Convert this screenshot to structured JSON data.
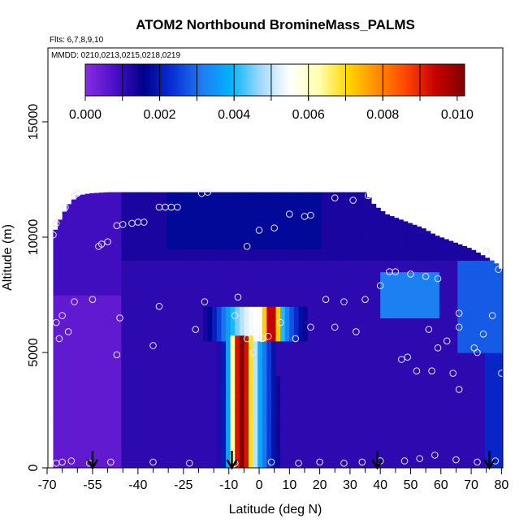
{
  "chart_data": {
    "type": "heatmap",
    "title": "ATOM2 Northbound BromineMass_PALMS",
    "subtitle_lines": [
      "Flts: 6,7,8,9,10",
      "MMDD: 0210,0213,0215,0218,0219"
    ],
    "xlabel": "Latitude (deg N)",
    "ylabel": "Altitude (m)",
    "xlim": [
      -70,
      85
    ],
    "ylim": [
      0,
      17500
    ],
    "x_ticks": [
      -70,
      -55,
      -40,
      -25,
      -10,
      0,
      10,
      20,
      30,
      40,
      50,
      60,
      70,
      80
    ],
    "x_tick_labels": [
      "-70",
      "-55",
      "-40",
      "-25",
      "-10",
      "0",
      "10",
      "20",
      "30",
      "40",
      "50",
      "60",
      "70",
      "80"
    ],
    "x_minor_ticks": [
      -65,
      -60,
      -50,
      -45,
      -35,
      -30,
      -20,
      -15,
      -5,
      5,
      15,
      25,
      35,
      45,
      55,
      65,
      75,
      85
    ],
    "y_ticks": [
      0,
      5000,
      10000,
      15000
    ],
    "y_tick_labels": [
      "0",
      "5000",
      "10000",
      "15000"
    ],
    "colorbar": {
      "range": [
        0,
        0.0102
      ],
      "ticks": [
        0.0,
        0.002,
        0.004,
        0.006,
        0.008,
        0.01
      ],
      "tick_labels": [
        "0.000",
        "0.002",
        "0.004",
        "0.006",
        "0.008",
        "0.010"
      ],
      "colors": [
        "#8a2be2",
        "#4b10c8",
        "#00008b",
        "#0a2fd6",
        "#1e7cf2",
        "#00b4ff",
        "#9fd8ff",
        "#ffffff",
        "#ffffb0",
        "#ffd700",
        "#ff8c00",
        "#ff4500",
        "#c80000",
        "#800000"
      ]
    },
    "column_profiles": [
      {
        "lat": -68,
        "top": 10100
      },
      {
        "lat": -66,
        "top": 10700
      },
      {
        "lat": -63,
        "top": 11400
      },
      {
        "lat": -60,
        "top": 11800
      },
      {
        "lat": -56,
        "top": 11900
      },
      {
        "lat": -50,
        "top": 11950
      },
      {
        "lat": -40,
        "top": 11950
      },
      {
        "lat": -30,
        "top": 11950
      },
      {
        "lat": -20,
        "top": 11950
      },
      {
        "lat": -10,
        "top": 11950
      },
      {
        "lat": 0,
        "top": 11950
      },
      {
        "lat": 10,
        "top": 11950
      },
      {
        "lat": 20,
        "top": 11950
      },
      {
        "lat": 30,
        "top": 11950
      },
      {
        "lat": 35,
        "top": 11950
      },
      {
        "lat": 38,
        "top": 11400
      },
      {
        "lat": 42,
        "top": 11000
      },
      {
        "lat": 46,
        "top": 10800
      },
      {
        "lat": 50,
        "top": 10600
      },
      {
        "lat": 54,
        "top": 10400
      },
      {
        "lat": 58,
        "top": 10100
      },
      {
        "lat": 62,
        "top": 9900
      },
      {
        "lat": 66,
        "top": 9700
      },
      {
        "lat": 70,
        "top": 9500
      },
      {
        "lat": 74,
        "top": 9200
      },
      {
        "lat": 78,
        "top": 8900
      },
      {
        "lat": 80,
        "top": 8600
      }
    ],
    "sample_points": [
      {
        "x": -68,
        "y": 10100
      },
      {
        "x": -67,
        "y": 10600
      },
      {
        "x": -64,
        "y": 11300
      },
      {
        "x": -61,
        "y": 11800
      },
      {
        "x": -60,
        "y": 11900
      },
      {
        "x": -53,
        "y": 9600
      },
      {
        "x": -52,
        "y": 9700
      },
      {
        "x": -50,
        "y": 9800
      },
      {
        "x": -47,
        "y": 10500
      },
      {
        "x": -45,
        "y": 10550
      },
      {
        "x": -42,
        "y": 10600
      },
      {
        "x": -40,
        "y": 10650
      },
      {
        "x": -38,
        "y": 10650
      },
      {
        "x": -33,
        "y": 11300
      },
      {
        "x": -31,
        "y": 11300
      },
      {
        "x": -29,
        "y": 11300
      },
      {
        "x": -27,
        "y": 11300
      },
      {
        "x": -19,
        "y": 11900
      },
      {
        "x": -17,
        "y": 11950
      },
      {
        "x": -4,
        "y": 9600
      },
      {
        "x": 0,
        "y": 10300
      },
      {
        "x": 5,
        "y": 10400
      },
      {
        "x": 10,
        "y": 11000
      },
      {
        "x": 15,
        "y": 10900
      },
      {
        "x": 17,
        "y": 10950
      },
      {
        "x": 25,
        "y": 11700
      },
      {
        "x": 31,
        "y": 11600
      },
      {
        "x": 36,
        "y": 11800
      },
      {
        "x": -67,
        "y": 6300
      },
      {
        "x": -66,
        "y": 5600
      },
      {
        "x": -65,
        "y": 6600
      },
      {
        "x": -63,
        "y": 5900
      },
      {
        "x": -61,
        "y": 7200
      },
      {
        "x": -55,
        "y": 7300
      },
      {
        "x": -46,
        "y": 6500
      },
      {
        "x": -47,
        "y": 4900
      },
      {
        "x": -33,
        "y": 7000
      },
      {
        "x": -35,
        "y": 5300
      },
      {
        "x": -21,
        "y": 6000
      },
      {
        "x": -18,
        "y": 7200
      },
      {
        "x": -8,
        "y": 6600
      },
      {
        "x": -7,
        "y": 7400
      },
      {
        "x": -4,
        "y": 5600
      },
      {
        "x": -2,
        "y": 5000
      },
      {
        "x": 1,
        "y": 5600
      },
      {
        "x": 3,
        "y": 5700
      },
      {
        "x": 7,
        "y": 6300
      },
      {
        "x": 12,
        "y": 5600
      },
      {
        "x": 17,
        "y": 6100
      },
      {
        "x": 22,
        "y": 7300
      },
      {
        "x": 25,
        "y": 6100
      },
      {
        "x": 28,
        "y": 7200
      },
      {
        "x": 32,
        "y": 5900
      },
      {
        "x": 35,
        "y": 7300
      },
      {
        "x": 40,
        "y": 7900
      },
      {
        "x": 43,
        "y": 8500
      },
      {
        "x": 45,
        "y": 8500
      },
      {
        "x": 50,
        "y": 8400
      },
      {
        "x": 55,
        "y": 8300
      },
      {
        "x": 59,
        "y": 8200
      },
      {
        "x": 47,
        "y": 4700
      },
      {
        "x": 49,
        "y": 4800
      },
      {
        "x": 52,
        "y": 4200
      },
      {
        "x": 56,
        "y": 6000
      },
      {
        "x": 57,
        "y": 4200
      },
      {
        "x": 59,
        "y": 5200
      },
      {
        "x": 62,
        "y": 5500
      },
      {
        "x": 64,
        "y": 4100
      },
      {
        "x": 66,
        "y": 3400
      },
      {
        "x": 66,
        "y": 6100
      },
      {
        "x": 66,
        "y": 6700
      },
      {
        "x": 71,
        "y": 5200
      },
      {
        "x": 72,
        "y": 5000
      },
      {
        "x": 74,
        "y": 5800
      },
      {
        "x": 75,
        "y": 9400
      },
      {
        "x": 77,
        "y": 6600
      },
      {
        "x": 79,
        "y": 8600
      },
      {
        "x": 80,
        "y": 4100
      },
      {
        "x": -67,
        "y": 200
      },
      {
        "x": -65,
        "y": 250
      },
      {
        "x": -62,
        "y": 300
      },
      {
        "x": -56,
        "y": 200
      },
      {
        "x": -49,
        "y": 250
      },
      {
        "x": -35,
        "y": 250
      },
      {
        "x": -23,
        "y": 200
      },
      {
        "x": -8,
        "y": 200
      },
      {
        "x": 4,
        "y": 250
      },
      {
        "x": 13,
        "y": 200
      },
      {
        "x": 20,
        "y": 250
      },
      {
        "x": 28,
        "y": 200
      },
      {
        "x": 34,
        "y": 250
      },
      {
        "x": 40,
        "y": 300
      },
      {
        "x": 48,
        "y": 300
      },
      {
        "x": 53,
        "y": 400
      },
      {
        "x": 58,
        "y": 550
      },
      {
        "x": 65,
        "y": 350
      },
      {
        "x": 72,
        "y": 250
      },
      {
        "x": 78,
        "y": 300
      }
    ],
    "arrows_at_latitude": [
      -55,
      -9,
      39,
      76
    ],
    "grid": false,
    "legend": "colorbar top inside plot"
  }
}
